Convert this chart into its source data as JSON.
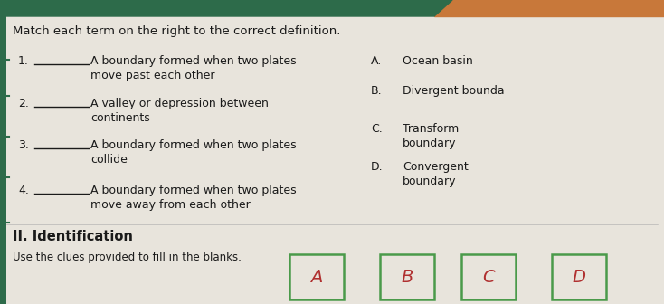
{
  "title": "Match each term on the right to the correct definition.",
  "background_color": "#e8e4dc",
  "header_color": "#2d6b4a",
  "header_accent_color": "#c8783a",
  "left_items": [
    {
      "num": "1.",
      "text1": "A boundary formed when two plates",
      "text2": "move past each other"
    },
    {
      "num": "2.",
      "text1": "A valley or depression between",
      "text2": "continents"
    },
    {
      "num": "3.",
      "text1": "A boundary formed when two plates",
      "text2": "collide"
    },
    {
      "num": "4.",
      "text1": "A boundary formed when two plates",
      "text2": "move away from each other"
    }
  ],
  "right_items": [
    {
      "letter": "A.",
      "text1": "Ocean basin",
      "text2": ""
    },
    {
      "letter": "B.",
      "text1": "Divergent bounda",
      "text2": ""
    },
    {
      "letter": "C.",
      "text1": "Transform",
      "text2": "boundary"
    },
    {
      "letter": "D.",
      "text1": "Convergent",
      "text2": "boundary"
    }
  ],
  "bottom_section_title": "II. Identification",
  "bottom_text": "Use the clues provided to fill in the blanks.",
  "answer_boxes": [
    "A",
    "B",
    "C",
    "D"
  ],
  "box_color": "#4a9a4a",
  "text_color": "#1a1a1a",
  "answer_letter_color": "#b03030",
  "sidebar_color": "#2d6b4a",
  "line_color": "#1a1a1a"
}
